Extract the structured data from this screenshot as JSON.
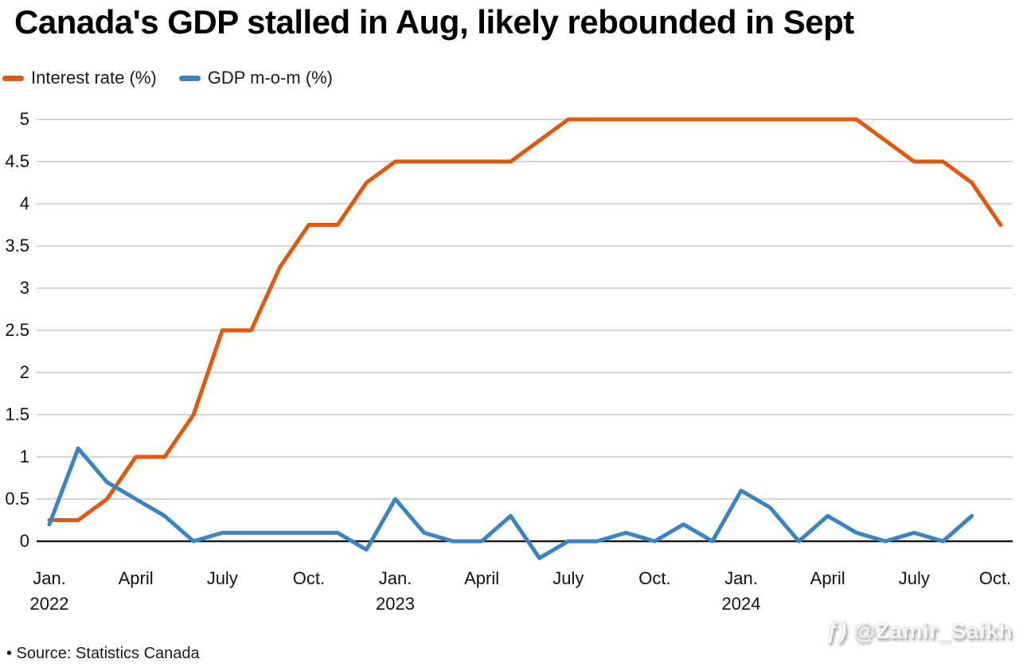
{
  "header": {
    "title": "Canada's GDP stalled in Aug, likely rebounded in Sept"
  },
  "legend": [
    {
      "label": "Interest rate (%)",
      "color": "#e2590d"
    },
    {
      "label": "GDP m-o-m (%)",
      "color": "#3884c6"
    }
  ],
  "footer": {
    "source": "• Source: Statistics Canada"
  },
  "watermark": {
    "icon": "threads-icon",
    "icon_glyph": "ƒ)",
    "handle": "@Zamir_Saikh"
  },
  "chart_data": {
    "type": "line",
    "title": "Canada's GDP stalled in Aug, likely rebounded in Sept",
    "x_unit": "month",
    "x_start": "Jan. 2022",
    "x_end_interest": "Oct. 2024",
    "x_end_gdp": "Sept. 2024",
    "grid": "horizontal",
    "legend_position": "top-left",
    "ylim": [
      -0.3,
      5.3
    ],
    "yticks": [
      0,
      0.5,
      1,
      1.5,
      2,
      2.5,
      3,
      3.5,
      4,
      4.5,
      5
    ],
    "x_ticks": [
      {
        "i": 0,
        "label": "Jan.",
        "year": "2022"
      },
      {
        "i": 3,
        "label": "April"
      },
      {
        "i": 6,
        "label": "July"
      },
      {
        "i": 9,
        "label": "Oct."
      },
      {
        "i": 12,
        "label": "Jan.",
        "year": "2023"
      },
      {
        "i": 15,
        "label": "April"
      },
      {
        "i": 18,
        "label": "July"
      },
      {
        "i": 21,
        "label": "Oct."
      },
      {
        "i": 24,
        "label": "Jan.",
        "year": "2024"
      },
      {
        "i": 27,
        "label": "April"
      },
      {
        "i": 30,
        "label": "July"
      },
      {
        "i": 33,
        "label": "Oct."
      }
    ],
    "series": [
      {
        "name": "Interest rate (%)",
        "color": "#e2590d",
        "values": [
          0.25,
          0.25,
          0.5,
          1.0,
          1.0,
          1.5,
          2.5,
          2.5,
          3.25,
          3.75,
          3.75,
          4.25,
          4.5,
          4.5,
          4.5,
          4.5,
          4.5,
          4.75,
          5.0,
          5.0,
          5.0,
          5.0,
          5.0,
          5.0,
          5.0,
          5.0,
          5.0,
          5.0,
          5.0,
          4.75,
          4.5,
          4.5,
          4.25,
          3.75
        ]
      },
      {
        "name": "GDP m-o-m (%)",
        "color": "#3884c6",
        "values": [
          0.2,
          1.1,
          0.7,
          0.5,
          0.3,
          0.0,
          0.1,
          0.1,
          0.1,
          0.1,
          0.1,
          -0.1,
          0.5,
          0.1,
          0.0,
          0.0,
          0.3,
          -0.2,
          0.0,
          0.0,
          0.1,
          0.0,
          0.2,
          0.0,
          0.6,
          0.4,
          0.0,
          0.3,
          0.1,
          0.0,
          0.1,
          0.0,
          0.3
        ]
      }
    ]
  }
}
